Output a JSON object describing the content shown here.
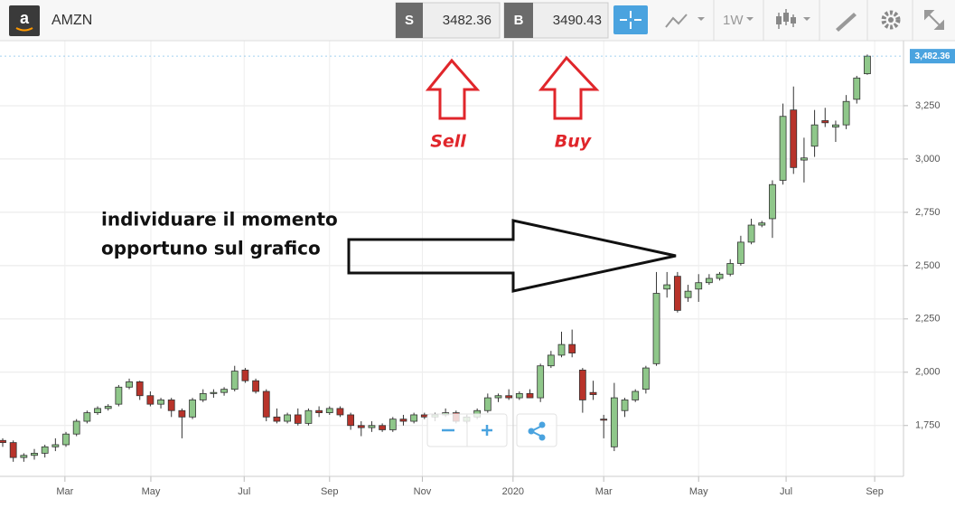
{
  "header": {
    "symbol": "AMZN",
    "sell_label": "S",
    "sell_price": 3482.36,
    "buy_label": "B",
    "buy_price": 3490.43,
    "interval": "1W"
  },
  "chart_data": {
    "type": "candlestick",
    "annotations": [
      "Sell",
      "Buy",
      "individuare il momento",
      "opportuno sul grafico"
    ],
    "categories": [
      null,
      null,
      null,
      null,
      null,
      null,
      null,
      null,
      null,
      null,
      null,
      null,
      null,
      null,
      null,
      null,
      null,
      null,
      null,
      null,
      null,
      null,
      null,
      null,
      null,
      null,
      null,
      null,
      null,
      null,
      null,
      null,
      null,
      null,
      null,
      null,
      null,
      null,
      null,
      null,
      null,
      null,
      null,
      null,
      null,
      null,
      null,
      null,
      null,
      null,
      null,
      null,
      null,
      null,
      null,
      null,
      null,
      null,
      null,
      null,
      null,
      null,
      null,
      null,
      null,
      null,
      null,
      null,
      null,
      null,
      null,
      null,
      null,
      null,
      null,
      null,
      null,
      null,
      null,
      null,
      null,
      null,
      null
    ],
    "open": [
      1680,
      1670,
      1600,
      1610,
      1620,
      1650,
      1660,
      1710,
      1770,
      1810,
      1830,
      1850,
      1930,
      1955,
      1890,
      1850,
      1870,
      1820,
      1790,
      1870,
      1900,
      1905,
      1920,
      2010,
      1960,
      1910,
      1790,
      1770,
      1800,
      1760,
      1820,
      1810,
      1830,
      1800,
      1750,
      1740,
      1750,
      1730,
      1780,
      1770,
      1800,
      1790,
      1800,
      1810,
      1770,
      1790,
      1820,
      1880,
      1890,
      1880,
      1900,
      1880,
      2030,
      2080,
      2130,
      2010,
      1905,
      1780,
      1650,
      1820,
      1870,
      1920,
      2040,
      2390,
      2450,
      2350,
      2390,
      2420,
      2440,
      2460,
      2510,
      2610,
      2690,
      2720,
      2900,
      3230,
      2995,
      3060,
      3180,
      3150,
      3160,
      3280,
      3400
    ],
    "high": [
      1690,
      1680,
      1620,
      1640,
      1660,
      1690,
      1720,
      1780,
      1820,
      1840,
      1850,
      1940,
      1970,
      1960,
      1910,
      1880,
      1880,
      1830,
      1880,
      1920,
      1920,
      1930,
      2030,
      2020,
      1970,
      1920,
      1830,
      1810,
      1830,
      1830,
      1840,
      1840,
      1840,
      1810,
      1770,
      1770,
      1760,
      1790,
      1800,
      1810,
      1810,
      1810,
      1830,
      1820,
      1800,
      1830,
      1900,
      1900,
      1920,
      1910,
      1920,
      2040,
      2100,
      2190,
      2200,
      2020,
      1960,
      1800,
      1950,
      1880,
      1920,
      2030,
      2470,
      2470,
      2470,
      2410,
      2460,
      2460,
      2470,
      2530,
      2640,
      2720,
      2710,
      2900,
      3260,
      3340,
      3100,
      3230,
      3240,
      3180,
      3300,
      3390,
      3490
    ],
    "low": [
      1650,
      1580,
      1580,
      1590,
      1600,
      1630,
      1650,
      1700,
      1760,
      1800,
      1820,
      1840,
      1920,
      1870,
      1840,
      1830,
      1790,
      1690,
      1780,
      1860,
      1880,
      1890,
      1910,
      1950,
      1900,
      1770,
      1760,
      1760,
      1750,
      1750,
      1790,
      1800,
      1790,
      1730,
      1700,
      1720,
      1720,
      1720,
      1750,
      1760,
      1780,
      1770,
      1790,
      1760,
      1760,
      1780,
      1810,
      1860,
      1870,
      1870,
      1880,
      1860,
      2020,
      2070,
      2070,
      1810,
      1870,
      1690,
      1630,
      1790,
      1860,
      1900,
      2030,
      2350,
      2280,
      2330,
      2330,
      2410,
      2430,
      2450,
      2500,
      2600,
      2680,
      2630,
      2880,
      2930,
      2890,
      3010,
      3150,
      3080,
      3140,
      3260,
      3395
    ],
    "close": [
      1670,
      1600,
      1610,
      1620,
      1650,
      1660,
      1710,
      1770,
      1810,
      1830,
      1840,
      1930,
      1955,
      1890,
      1850,
      1870,
      1820,
      1790,
      1870,
      1900,
      1905,
      1920,
      2005,
      1960,
      1910,
      1790,
      1770,
      1800,
      1760,
      1820,
      1810,
      1830,
      1800,
      1750,
      1740,
      1750,
      1730,
      1780,
      1770,
      1800,
      1790,
      1800,
      1810,
      1770,
      1790,
      1820,
      1880,
      1890,
      1880,
      1900,
      1880,
      2030,
      2080,
      2130,
      2090,
      1870,
      1895,
      1775,
      1880,
      1870,
      1910,
      2020,
      2370,
      2410,
      2290,
      2380,
      2420,
      2440,
      2460,
      2510,
      2610,
      2690,
      2700,
      2880,
      3200,
      2960,
      3005,
      3160,
      3170,
      3160,
      3270,
      3380,
      3482.36
    ],
    "up_color": "#8fc78a",
    "down_color": "#b8332a",
    "last_price": {
      "value": 3482.36,
      "label": "3,482.36"
    },
    "ylim": [
      1520,
      3555
    ],
    "yticks": [
      {
        "value": 1750,
        "label": "1,750"
      },
      {
        "value": 2000,
        "label": "2,000"
      },
      {
        "value": 2250,
        "label": "2,250"
      },
      {
        "value": 2500,
        "label": "2,500"
      },
      {
        "value": 2750,
        "label": "2,750"
      },
      {
        "value": 3000,
        "label": "3,000"
      },
      {
        "value": 3250,
        "label": "3,250"
      }
    ],
    "xticks": [
      {
        "value": 5.9,
        "label": "Mar"
      },
      {
        "value": 14.05,
        "label": "May"
      },
      {
        "value": 22.9,
        "label": "Jul"
      },
      {
        "value": 31.0,
        "label": "Sep"
      },
      {
        "value": 39.8,
        "label": "Nov"
      },
      {
        "value": 48.4,
        "label": "2020"
      },
      {
        "value": 57.0,
        "label": "Mar"
      },
      {
        "value": 66.0,
        "label": "May"
      },
      {
        "value": 74.3,
        "label": "Jul"
      },
      {
        "value": 82.7,
        "label": "Sep"
      }
    ],
    "grid": true
  }
}
